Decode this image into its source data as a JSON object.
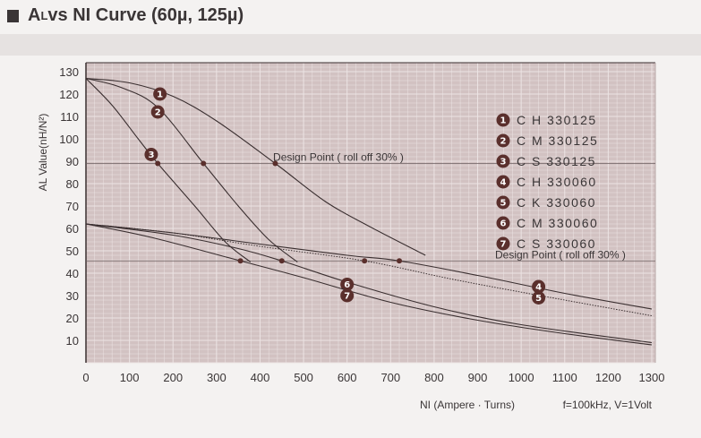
{
  "chart_data": {
    "type": "line",
    "title": "AL vs NI Curve (60µ, 125µ)",
    "title_prefix": "A",
    "title_sub": "L",
    "title_rest": " vs NI Curve (60µ, 125µ)",
    "xlabel": "NI (Ampere · Turns)",
    "ylabel": "AL Value(nH/N²)",
    "note": "f=100kHz, V=1Volt",
    "xlim": [
      0,
      1300
    ],
    "ylim": [
      0,
      135
    ],
    "xticks": [
      0,
      100,
      200,
      300,
      400,
      500,
      600,
      700,
      800,
      900,
      1000,
      1100,
      1200,
      1300
    ],
    "yticks": [
      10,
      20,
      30,
      40,
      50,
      60,
      70,
      80,
      90,
      100,
      110,
      120,
      130
    ],
    "grid": true,
    "design_lines": [
      {
        "label": "Design Point ( roll off 30% )",
        "y": 89,
        "label_x": 430
      },
      {
        "label": "Design Point ( roll off 30% )",
        "y": 45.5,
        "label_x": 940
      }
    ],
    "series": [
      {
        "id": "1",
        "name": "C H 330125",
        "style": "solid",
        "label_at": [
          170,
          120
        ],
        "design_point": [
          435,
          89
        ],
        "points": [
          [
            0,
            127
          ],
          [
            100,
            125
          ],
          [
            200,
            119
          ],
          [
            300,
            108
          ],
          [
            435,
            89
          ],
          [
            550,
            72
          ],
          [
            650,
            61
          ],
          [
            780,
            48
          ]
        ]
      },
      {
        "id": "2",
        "name": "C M 330125",
        "style": "solid",
        "label_at": [
          165,
          112
        ],
        "design_point": [
          270,
          89
        ],
        "points": [
          [
            0,
            127
          ],
          [
            80,
            123
          ],
          [
            165,
            114
          ],
          [
            270,
            89
          ],
          [
            350,
            70
          ],
          [
            420,
            55
          ],
          [
            486,
            45
          ]
        ]
      },
      {
        "id": "3",
        "name": "C S 330125",
        "style": "solid",
        "label_at": [
          150,
          93
        ],
        "design_point": [
          165,
          89
        ],
        "points": [
          [
            0,
            127
          ],
          [
            60,
            115
          ],
          [
            120,
            100
          ],
          [
            165,
            89
          ],
          [
            250,
            70
          ],
          [
            320,
            54
          ],
          [
            378,
            45
          ]
        ]
      },
      {
        "id": "4",
        "name": "C H 330060",
        "style": "solid",
        "label_at": [
          1040,
          34
        ],
        "design_point": [
          720,
          45.5
        ],
        "points": [
          [
            0,
            62
          ],
          [
            200,
            58
          ],
          [
            400,
            53
          ],
          [
            600,
            48
          ],
          [
            720,
            45.5
          ],
          [
            900,
            39
          ],
          [
            1100,
            31
          ],
          [
            1300,
            24
          ]
        ]
      },
      {
        "id": "5",
        "name": "C K 330060",
        "style": "dotted",
        "label_at": [
          1040,
          29
        ],
        "design_point": [
          640,
          45.5
        ],
        "points": [
          [
            0,
            62
          ],
          [
            200,
            58
          ],
          [
            400,
            52
          ],
          [
            640,
            45.5
          ],
          [
            850,
            37
          ],
          [
            1100,
            28
          ],
          [
            1300,
            21
          ]
        ]
      },
      {
        "id": "6",
        "name": "C M 330060",
        "style": "solid",
        "label_at": [
          600,
          35
        ],
        "design_point": [
          450,
          45.5
        ],
        "points": [
          [
            0,
            62
          ],
          [
            200,
            57
          ],
          [
            350,
            51
          ],
          [
            450,
            45.5
          ],
          [
            600,
            36
          ],
          [
            800,
            25
          ],
          [
            1000,
            17
          ],
          [
            1300,
            9
          ]
        ]
      },
      {
        "id": "7",
        "name": "C S 330060",
        "style": "solid",
        "label_at": [
          600,
          30
        ],
        "design_point": [
          355,
          45.5
        ],
        "points": [
          [
            0,
            62
          ],
          [
            150,
            56
          ],
          [
            355,
            45.5
          ],
          [
            500,
            38
          ],
          [
            700,
            27
          ],
          [
            900,
            19
          ],
          [
            1100,
            13
          ],
          [
            1300,
            8
          ]
        ]
      }
    ],
    "legend_position": "top-right",
    "colors": {
      "plot_bg": "#d2c2c2",
      "grid": "#ece4e4",
      "line": "#3a2f30",
      "badge": "#5a2f2c"
    }
  }
}
